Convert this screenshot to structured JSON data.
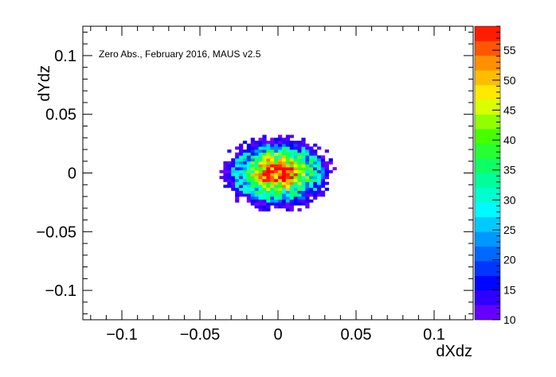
{
  "chart_data": {
    "type": "heatmap",
    "title": "",
    "annotation": "Zero Abs., February 2016, MAUS v2.5",
    "xlabel": "dXdz",
    "ylabel": "dYdz",
    "xlim": [
      -0.125,
      0.125
    ],
    "ylim": [
      -0.125,
      0.125
    ],
    "x_ticks": [
      -0.1,
      -0.05,
      0,
      0.05,
      0.1
    ],
    "x_tick_labels": [
      "−0.1",
      "−0.05",
      "0",
      "0.05",
      "0.1"
    ],
    "y_ticks": [
      -0.1,
      -0.05,
      0,
      0.05,
      0.1
    ],
    "y_tick_labels": [
      "−0.1",
      "−0.05",
      "0",
      "0.05",
      "0.1"
    ],
    "bin_width": 0.0025,
    "z_range": [
      10,
      59
    ],
    "colorbar_ticks": [
      10,
      15,
      20,
      25,
      30,
      35,
      40,
      45,
      50,
      55
    ],
    "colorbar_tick_labels": [
      "10",
      "15",
      "20",
      "25",
      "30",
      "35",
      "40",
      "45",
      "50",
      "55"
    ],
    "distribution": {
      "shape": "gaussian-like blob",
      "center": [
        0.0,
        0.0
      ],
      "x_extent": [
        -0.035,
        0.035
      ],
      "y_extent": [
        -0.03,
        0.032
      ],
      "peak_value": 58
    }
  }
}
